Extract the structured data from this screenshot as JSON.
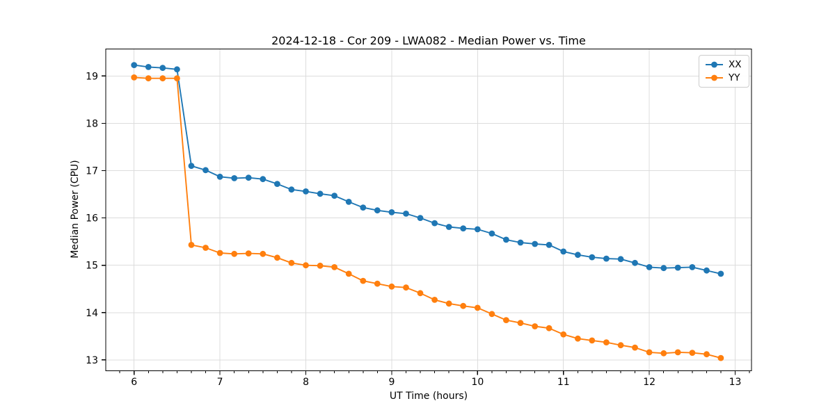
{
  "chart_data": {
    "type": "line",
    "title": "2024-12-18 - Cor 209 - LWA082 - Median Power vs. Time",
    "xlabel": "UT Time (hours)",
    "ylabel": "Median Power (CPU)",
    "xlim": [
      5.67,
      13.19
    ],
    "ylim": [
      12.77,
      19.57
    ],
    "x_ticks": [
      6,
      7,
      8,
      9,
      10,
      11,
      12,
      13
    ],
    "y_ticks": [
      13,
      14,
      15,
      16,
      17,
      18,
      19
    ],
    "x_minor_step": 0.16667,
    "grid": "major",
    "grid_color": "#dcdcdc",
    "spine_color": "#000000",
    "legend_position": "upper right",
    "x": [
      6.0,
      6.167,
      6.333,
      6.5,
      6.667,
      6.833,
      7.0,
      7.167,
      7.333,
      7.5,
      7.667,
      7.833,
      8.0,
      8.167,
      8.333,
      8.5,
      8.667,
      8.833,
      9.0,
      9.167,
      9.333,
      9.5,
      9.667,
      9.833,
      10.0,
      10.167,
      10.333,
      10.5,
      10.667,
      10.833,
      11.0,
      11.167,
      11.333,
      11.5,
      11.667,
      11.833,
      12.0,
      12.167,
      12.333,
      12.5,
      12.667,
      12.833
    ],
    "series": [
      {
        "name": "XX",
        "color": "#1f77b4",
        "values": [
          19.23,
          19.19,
          19.17,
          19.14,
          17.1,
          17.01,
          16.87,
          16.84,
          16.85,
          16.82,
          16.72,
          16.6,
          16.56,
          16.51,
          16.47,
          16.34,
          16.22,
          16.16,
          16.12,
          16.09,
          16.0,
          15.89,
          15.81,
          15.78,
          15.76,
          15.67,
          15.54,
          15.48,
          15.45,
          15.43,
          15.29,
          15.22,
          15.17,
          15.14,
          15.13,
          15.05,
          14.96,
          14.94,
          14.95,
          14.96,
          14.89,
          14.82
        ]
      },
      {
        "name": "YY",
        "color": "#ff7f0e",
        "values": [
          18.97,
          18.95,
          18.95,
          18.95,
          15.43,
          15.37,
          15.26,
          15.24,
          15.25,
          15.24,
          15.16,
          15.05,
          15.0,
          14.99,
          14.96,
          14.82,
          14.67,
          14.61,
          14.55,
          14.53,
          14.41,
          14.27,
          14.19,
          14.14,
          14.1,
          13.97,
          13.84,
          13.78,
          13.71,
          13.67,
          13.54,
          13.45,
          13.41,
          13.37,
          13.31,
          13.26,
          13.16,
          13.14,
          13.16,
          13.15,
          13.12,
          13.04
        ]
      }
    ]
  }
}
